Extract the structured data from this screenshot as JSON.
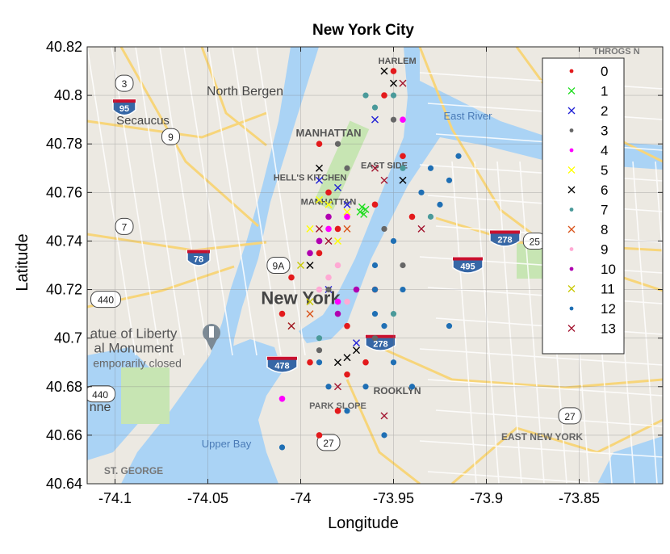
{
  "chart_data": {
    "type": "scatter",
    "title": "New York City",
    "xlabel": "Longitude",
    "ylabel": "Latitude",
    "xlim": [
      -74.115,
      -73.805
    ],
    "ylim": [
      40.64,
      40.82
    ],
    "xticks": [
      -74.1,
      -74.05,
      -74.0,
      -73.95,
      -73.9,
      -73.85
    ],
    "xtick_labels": [
      "-74.1",
      "-74.05",
      "-74",
      "-73.95",
      "-73.9",
      "-73.85"
    ],
    "yticks": [
      40.64,
      40.66,
      40.68,
      40.7,
      40.72,
      40.74,
      40.76,
      40.78,
      40.8,
      40.82
    ],
    "ytick_labels": [
      "40.64",
      "40.66",
      "40.68",
      "40.7",
      "40.72",
      "40.74",
      "40.76",
      "40.78",
      "40.8",
      "40.82"
    ],
    "grid": true,
    "legend_position": "top-right",
    "series": [
      {
        "name": "0",
        "marker": "dot",
        "color": "#e31a1c",
        "points": [
          [
            -74.005,
            40.725
          ],
          [
            -73.99,
            40.735
          ],
          [
            -73.985,
            40.76
          ],
          [
            -73.975,
            40.705
          ],
          [
            -73.995,
            40.69
          ],
          [
            -73.98,
            40.67
          ],
          [
            -73.955,
            40.8
          ],
          [
            -73.945,
            40.775
          ],
          [
            -73.96,
            40.72
          ],
          [
            -73.99,
            40.66
          ],
          [
            -73.965,
            40.69
          ],
          [
            -73.975,
            40.685
          ],
          [
            -73.94,
            40.75
          ],
          [
            -73.99,
            40.78
          ],
          [
            -74.01,
            40.71
          ],
          [
            -73.98,
            40.745
          ],
          [
            -73.95,
            40.81
          ],
          [
            -73.96,
            40.755
          ]
        ]
      },
      {
        "name": "1",
        "marker": "x",
        "color": "#22dd22",
        "points": [
          [
            -73.968,
            40.752
          ],
          [
            -73.966,
            40.751
          ],
          [
            -73.965,
            40.753
          ],
          [
            -73.967,
            40.754
          ]
        ]
      },
      {
        "name": "2",
        "marker": "x",
        "color": "#1f1fd6",
        "points": [
          [
            -73.99,
            40.765
          ],
          [
            -73.98,
            40.762
          ],
          [
            -73.97,
            40.698
          ],
          [
            -73.985,
            40.72
          ],
          [
            -73.96,
            40.79
          ],
          [
            -73.975,
            40.755
          ]
        ]
      },
      {
        "name": "3",
        "marker": "dot",
        "color": "#666666",
        "points": [
          [
            -73.955,
            40.745
          ],
          [
            -73.99,
            40.695
          ],
          [
            -73.95,
            40.79
          ],
          [
            -73.985,
            40.72
          ],
          [
            -73.96,
            40.7
          ],
          [
            -73.975,
            40.77
          ],
          [
            -73.945,
            40.73
          ],
          [
            -73.98,
            40.78
          ]
        ]
      },
      {
        "name": "4",
        "marker": "dot",
        "color": "#ff00ff",
        "points": [
          [
            -73.985,
            40.745
          ],
          [
            -73.98,
            40.715
          ],
          [
            -74.01,
            40.675
          ],
          [
            -73.975,
            40.75
          ],
          [
            -73.945,
            40.79
          ],
          [
            -73.99,
            40.74
          ]
        ]
      },
      {
        "name": "5",
        "marker": "x",
        "color": "#ffff00",
        "points": [
          [
            -73.99,
            40.757
          ],
          [
            -73.985,
            40.755
          ],
          [
            -73.975,
            40.752
          ],
          [
            -73.995,
            40.745
          ],
          [
            -73.98,
            40.74
          ]
        ]
      },
      {
        "name": "6",
        "marker": "x",
        "color": "#000000",
        "points": [
          [
            -73.955,
            40.81
          ],
          [
            -73.95,
            40.805
          ],
          [
            -73.98,
            40.69
          ],
          [
            -73.995,
            40.73
          ],
          [
            -73.97,
            40.695
          ],
          [
            -73.975,
            40.692
          ],
          [
            -73.945,
            40.765
          ],
          [
            -73.99,
            40.77
          ]
        ]
      },
      {
        "name": "7",
        "marker": "dot",
        "color": "#4a9a9a",
        "points": [
          [
            -73.95,
            40.8
          ],
          [
            -73.96,
            40.795
          ],
          [
            -73.945,
            40.77
          ],
          [
            -73.93,
            40.75
          ],
          [
            -73.96,
            40.72
          ],
          [
            -73.95,
            40.71
          ],
          [
            -73.965,
            40.8
          ],
          [
            -73.99,
            40.7
          ]
        ]
      },
      {
        "name": "8",
        "marker": "x",
        "color": "#d95319",
        "points": [
          [
            -73.975,
            40.745
          ],
          [
            -73.995,
            40.71
          ]
        ]
      },
      {
        "name": "9",
        "marker": "dot",
        "color": "#ffaad4",
        "points": [
          [
            -73.985,
            40.725
          ],
          [
            -73.99,
            40.72
          ],
          [
            -73.98,
            40.73
          ],
          [
            -73.975,
            40.715
          ]
        ]
      },
      {
        "name": "10",
        "marker": "dot",
        "color": "#b000b0",
        "points": [
          [
            -73.99,
            40.74
          ],
          [
            -73.985,
            40.75
          ],
          [
            -73.97,
            40.72
          ],
          [
            -73.98,
            40.71
          ],
          [
            -73.995,
            40.735
          ]
        ]
      },
      {
        "name": "11",
        "marker": "x",
        "color": "#c8c800",
        "points": [
          [
            -74.005,
            40.705
          ],
          [
            -74.0,
            40.73
          ],
          [
            -73.995,
            40.715
          ]
        ]
      },
      {
        "name": "12",
        "marker": "dot",
        "color": "#1f6fb4",
        "points": [
          [
            -73.93,
            40.77
          ],
          [
            -73.92,
            40.765
          ],
          [
            -73.925,
            40.755
          ],
          [
            -73.935,
            40.76
          ],
          [
            -73.915,
            40.775
          ],
          [
            -73.96,
            40.72
          ],
          [
            -73.955,
            40.705
          ],
          [
            -73.95,
            40.69
          ],
          [
            -73.965,
            40.68
          ],
          [
            -73.975,
            40.67
          ],
          [
            -73.985,
            40.68
          ],
          [
            -73.99,
            40.69
          ],
          [
            -73.94,
            40.68
          ],
          [
            -73.955,
            40.66
          ],
          [
            -73.96,
            40.71
          ],
          [
            -73.945,
            40.72
          ],
          [
            -73.92,
            40.705
          ],
          [
            -74.01,
            40.655
          ],
          [
            -73.96,
            40.73
          ],
          [
            -73.95,
            40.74
          ]
        ]
      },
      {
        "name": "13",
        "marker": "x",
        "color": "#a2142f",
        "points": [
          [
            -73.945,
            40.805
          ],
          [
            -73.96,
            40.77
          ],
          [
            -73.955,
            40.765
          ],
          [
            -73.935,
            40.745
          ],
          [
            -74.005,
            40.705
          ],
          [
            -73.99,
            40.745
          ],
          [
            -73.985,
            40.74
          ],
          [
            -73.955,
            40.668
          ],
          [
            -73.98,
            40.68
          ]
        ]
      }
    ]
  },
  "map_labels": [
    {
      "text": "North Bergen",
      "lon": -74.03,
      "lat": 40.8,
      "color": "#444444",
      "size": 16,
      "weight": "normal"
    },
    {
      "text": "Secaucus",
      "lon": -74.085,
      "lat": 40.788,
      "color": "#444444",
      "size": 15,
      "weight": "normal"
    },
    {
      "text": "MANHATTAN",
      "lon": -73.985,
      "lat": 40.783,
      "color": "#555555",
      "size": 13,
      "weight": "bold"
    },
    {
      "text": "HELL'S KITCHEN",
      "lon": -73.995,
      "lat": 40.765,
      "color": "#555555",
      "size": 11,
      "weight": "bold"
    },
    {
      "text": "MANHATTAN",
      "lon": -73.985,
      "lat": 40.755,
      "color": "#555555",
      "size": 11,
      "weight": "bold"
    },
    {
      "text": "EAST SIDE",
      "lon": -73.955,
      "lat": 40.77,
      "color": "#555555",
      "size": 11,
      "weight": "bold"
    },
    {
      "text": "HARLEM",
      "lon": -73.948,
      "lat": 40.813,
      "color": "#555555",
      "size": 11,
      "weight": "bold"
    },
    {
      "text": "New York",
      "lon": -74.0,
      "lat": 40.714,
      "color": "#444444",
      "size": 22,
      "weight": "bold"
    },
    {
      "text": "atue of Liberty",
      "lon": -74.09,
      "lat": 40.7,
      "color": "#555555",
      "size": 17,
      "weight": "normal"
    },
    {
      "text": "al Monument",
      "lon": -74.09,
      "lat": 40.694,
      "color": "#555555",
      "size": 17,
      "weight": "normal"
    },
    {
      "text": "emporarily closed",
      "lon": -74.088,
      "lat": 40.688,
      "color": "#666666",
      "size": 14,
      "weight": "normal"
    },
    {
      "text": "ROOKLYN",
      "lon": -73.948,
      "lat": 40.677,
      "color": "#555555",
      "size": 12,
      "weight": "bold"
    },
    {
      "text": "EAST NEW YORK",
      "lon": -73.87,
      "lat": 40.658,
      "color": "#666666",
      "size": 12,
      "weight": "bold"
    },
    {
      "text": "ST. GEORGE",
      "lon": -74.09,
      "lat": 40.644,
      "color": "#777777",
      "size": 12,
      "weight": "bold"
    },
    {
      "text": "THROGS N",
      "lon": -73.83,
      "lat": 40.817,
      "color": "#777777",
      "size": 11,
      "weight": "bold"
    },
    {
      "text": "East River",
      "lon": -73.91,
      "lat": 40.79,
      "color": "#4a7bb7",
      "size": 13,
      "weight": "normal"
    },
    {
      "text": "Upper Bay",
      "lon": -74.04,
      "lat": 40.655,
      "color": "#4a7bb7",
      "size": 13,
      "weight": "normal"
    },
    {
      "text": "nne",
      "lon": -74.108,
      "lat": 40.67,
      "color": "#444444",
      "size": 16,
      "weight": "normal"
    },
    {
      "text": "PARK SLOPE",
      "lon": -73.98,
      "lat": 40.671,
      "color": "#666666",
      "size": 11,
      "weight": "bold"
    }
  ],
  "highway_shields": [
    {
      "text": "3",
      "lon": -74.095,
      "lat": 40.805,
      "kind": "state"
    },
    {
      "text": "95",
      "lon": -74.095,
      "lat": 40.795,
      "kind": "interstate"
    },
    {
      "text": "9",
      "lon": -74.07,
      "lat": 40.783,
      "kind": "state"
    },
    {
      "text": "7",
      "lon": -74.095,
      "lat": 40.746,
      "kind": "state"
    },
    {
      "text": "78",
      "lon": -74.055,
      "lat": 40.733,
      "kind": "interstate"
    },
    {
      "text": "440",
      "lon": -74.105,
      "lat": 40.716,
      "kind": "state"
    },
    {
      "text": "9A",
      "lon": -74.012,
      "lat": 40.73,
      "kind": "state"
    },
    {
      "text": "478",
      "lon": -74.01,
      "lat": 40.689,
      "kind": "interstate"
    },
    {
      "text": "278",
      "lon": -73.957,
      "lat": 40.698,
      "kind": "interstate"
    },
    {
      "text": "440",
      "lon": -74.108,
      "lat": 40.677,
      "kind": "state"
    },
    {
      "text": "27",
      "lon": -73.985,
      "lat": 40.657,
      "kind": "state"
    },
    {
      "text": "27",
      "lon": -73.855,
      "lat": 40.668,
      "kind": "state"
    },
    {
      "text": "278",
      "lon": -73.89,
      "lat": 40.741,
      "kind": "interstate"
    },
    {
      "text": "25",
      "lon": -73.874,
      "lat": 40.74,
      "kind": "state"
    },
    {
      "text": "495",
      "lon": -73.91,
      "lat": 40.73,
      "kind": "interstate"
    }
  ]
}
